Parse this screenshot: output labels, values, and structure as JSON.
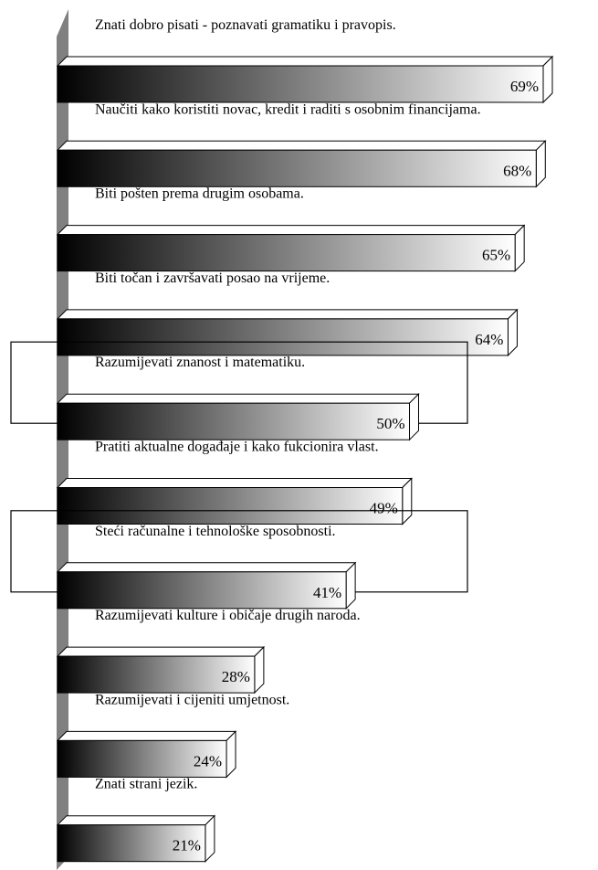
{
  "chart_data": {
    "type": "bar",
    "orientation": "horizontal",
    "title": "",
    "xlabel": "",
    "ylabel": "",
    "categories": [
      "Znati dobro pisati - poznavati gramatiku i pravopis.",
      "Naučiti kako koristiti novac, kredit i raditi s osobnim financijama.",
      "Biti pošten prema drugim osobama.",
      "Biti točan i završavati posao na vrijeme.",
      "Razumijevati znanost i matematiku.",
      "Pratiti aktualne događaje i kako fukcionira vlast.",
      "Steći računalne i tehnološke sposobnosti.",
      "Razumijevati kulture i običaje drugih naroda.",
      "Razumijevati i cijeniti umjetnost.",
      "Znati strani jezik."
    ],
    "values": [
      69,
      68,
      65,
      64,
      50,
      49,
      41,
      28,
      24,
      21
    ],
    "value_labels": [
      "69%",
      "68%",
      "65%",
      "64%",
      "50%",
      "49%",
      "41%",
      "28%",
      "24%",
      "21%"
    ],
    "highlighted": [
      false,
      false,
      false,
      false,
      true,
      false,
      true,
      false,
      false,
      false
    ],
    "grid": false,
    "legend": "none",
    "bar_style": "3d gradient black-to-white",
    "colors": {
      "bar_start": "#000000",
      "bar_end": "#ffffff",
      "axis_wall": "#808080",
      "text": "#000000",
      "outline": "#000000"
    }
  }
}
